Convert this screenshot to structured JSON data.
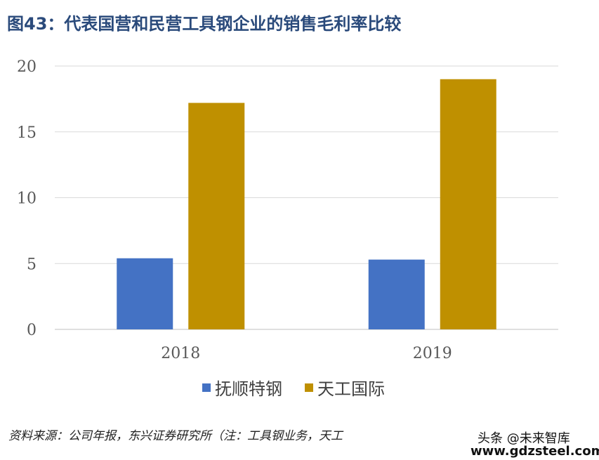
{
  "title": "图43：代表国营和民营工具钢企业的销售毛利率比较",
  "source": "资料来源：公司年报，东兴证券研究所（注：工具钢业务，天工",
  "watermark": {
    "line1": "头条 @未来智库",
    "line2": "www.gdzsteel.com"
  },
  "chart_data": {
    "type": "bar",
    "categories": [
      "2018",
      "2019"
    ],
    "series": [
      {
        "name": "抚顺特钢",
        "values": [
          5.4,
          5.3
        ],
        "color": "#4472c4"
      },
      {
        "name": "天工国际",
        "values": [
          17.2,
          19.0
        ],
        "color": "#bf9000"
      }
    ],
    "ylim": [
      0,
      20
    ],
    "yticks": [
      0,
      5,
      10,
      15,
      20
    ],
    "grid": true,
    "legend": "bottom"
  }
}
